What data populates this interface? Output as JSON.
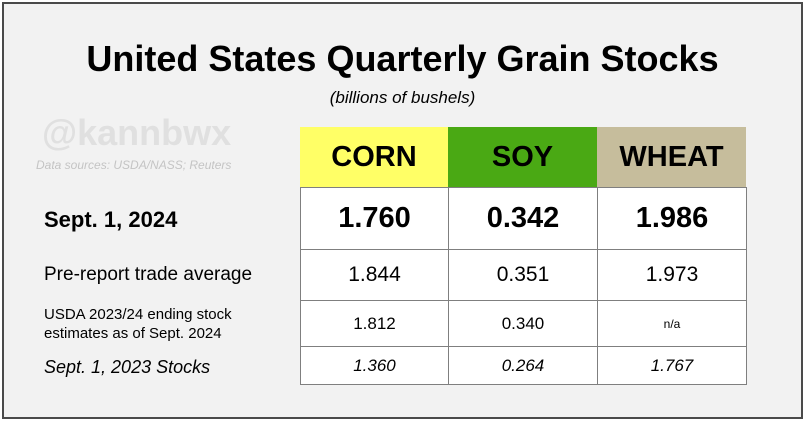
{
  "title": "United States Quarterly Grain Stocks",
  "subtitle": "(billions of bushels)",
  "watermark": "@kannbwx",
  "sources": "Data sources: USDA/NASS; Reuters",
  "columns": [
    {
      "label": "CORN",
      "color": "#ffff66"
    },
    {
      "label": "SOY",
      "color": "#4aa914"
    },
    {
      "label": "WHEAT",
      "color": "#c6bd9c"
    }
  ],
  "rows": [
    {
      "label": "Sept. 1, 2024",
      "values": [
        "1.760",
        "0.342",
        "1.986"
      ]
    },
    {
      "label": "Pre-report trade average",
      "values": [
        "1.844",
        "0.351",
        "1.973"
      ]
    },
    {
      "label_line1": "USDA 2023/24 ending stock",
      "label_line2": "estimates as of Sept. 2024",
      "values": [
        "1.812",
        "0.340",
        "n/a"
      ]
    },
    {
      "label": "Sept. 1, 2023 Stocks",
      "values": [
        "1.360",
        "0.264",
        "1.767"
      ]
    }
  ]
}
